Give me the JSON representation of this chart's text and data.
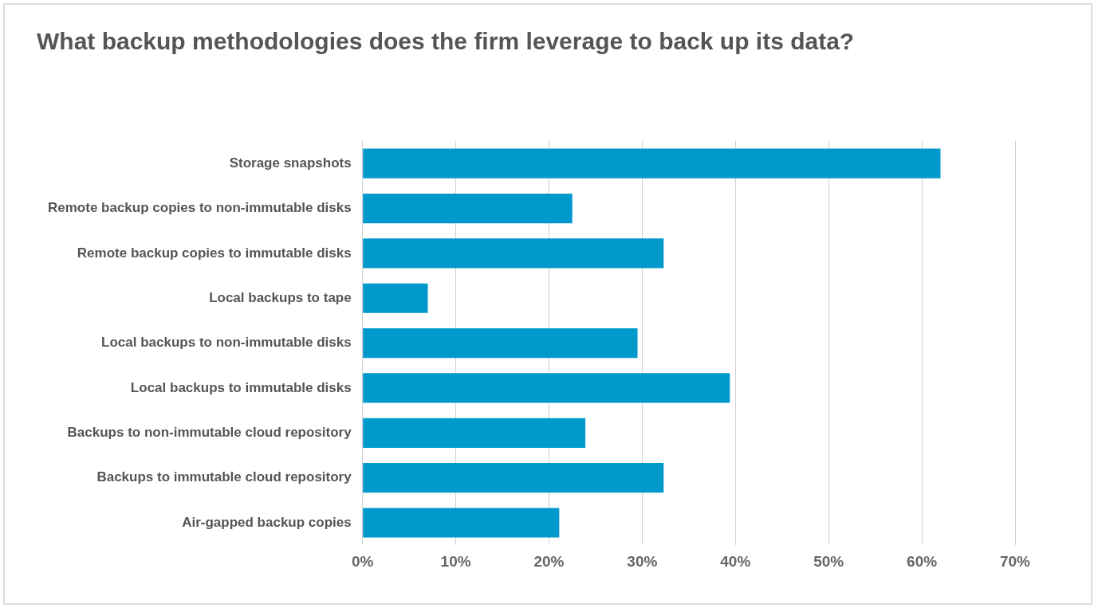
{
  "chart_data": {
    "type": "bar",
    "orientation": "horizontal",
    "title": "What backup methodologies does the firm leverage to back up its data?",
    "categories": [
      "Storage snapshots",
      "Remote backup copies to non-immutable disks",
      "Remote backup copies to immutable disks",
      "Local backups to tape",
      "Local backups to non-immutable disks",
      "Local backups to immutable disks",
      "Backups to non-immutable cloud repository",
      "Backups to immutable cloud repository",
      "Air-gapped backup copies"
    ],
    "values": [
      62,
      22.5,
      32.3,
      7,
      29.5,
      39.4,
      23.9,
      32.3,
      21.1
    ],
    "color": "#0099cc",
    "xlim": [
      0,
      70
    ],
    "xticks": [
      {
        "value": 0,
        "label": "0%"
      },
      {
        "value": 10,
        "label": "10%"
      },
      {
        "value": 20,
        "label": "20%"
      },
      {
        "value": 30,
        "label": "30%"
      },
      {
        "value": 40,
        "label": "40%"
      },
      {
        "value": 50,
        "label": "50%"
      },
      {
        "value": 60,
        "label": "60%"
      },
      {
        "value": 70,
        "label": "70%"
      }
    ],
    "grid": "x",
    "legend": false
  }
}
